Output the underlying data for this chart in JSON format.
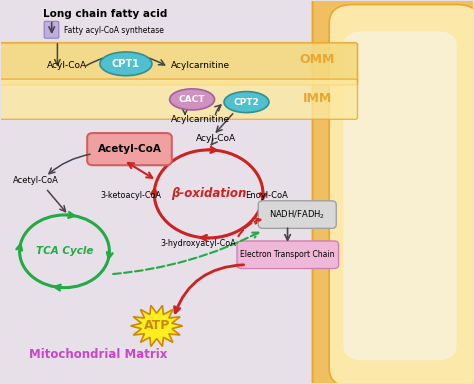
{
  "background_color": "#e8e0e8",
  "omm_label": "OMM",
  "imm_label": "IMM",
  "matrix_label": "Mitochondrial Matrix",
  "beta_ox_label": "β-oxidation",
  "tca_label": "TCA Cycle",
  "atp_label": "ATP",
  "omm_band_color": "#f5d980",
  "omm_edge_color": "#e8a830",
  "imm_band_color": "#fceaa0",
  "right_mem_color": "#f0c060",
  "cpt1_color": "#50c0d0",
  "cact_color": "#d090c0",
  "cpt2_color": "#50c0d0",
  "acetylcoa_face": "#f0a0a0",
  "acetylcoa_edge": "#d06060",
  "nadh_face": "#d8d8d8",
  "nadh_edge": "#a0a0a0",
  "etc_face": "#f0b8d8",
  "etc_edge": "#d080b0",
  "beta_color": "#cc2222",
  "tca_color": "#22aa44",
  "atp_face": "#ffee22",
  "atp_edge": "#cc8800",
  "arrow_black": "#444444",
  "syn_face": "#c0aee0",
  "syn_edge": "#9080b8"
}
